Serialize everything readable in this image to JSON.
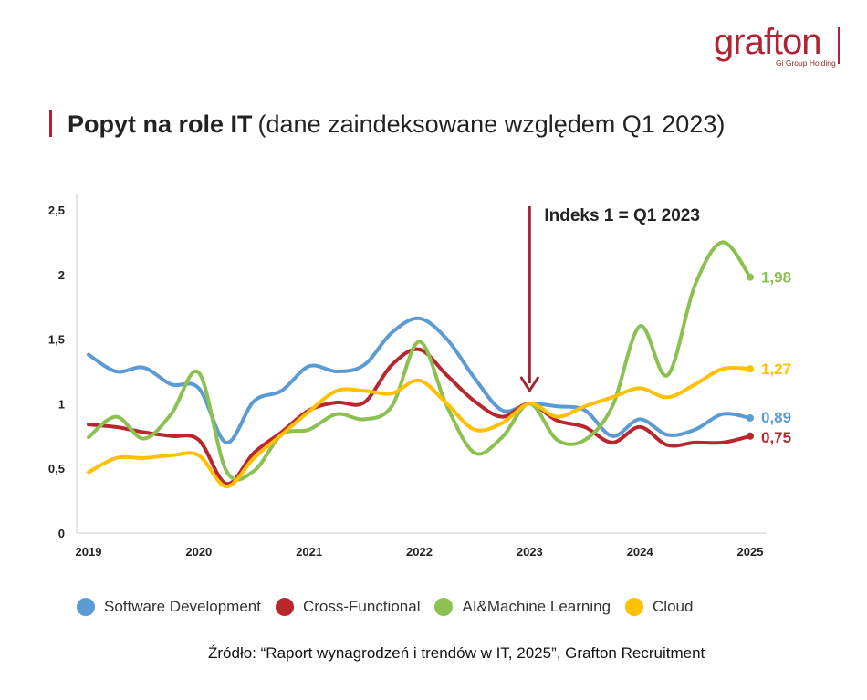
{
  "logo": {
    "word": "grafton",
    "sub": "Gi Group Holding"
  },
  "title": {
    "bold": "Popyt na role IT",
    "regular": "(dane zaindeksowane względem Q1 2023)"
  },
  "annotation": {
    "text": "Indeks 1 = Q1 2023",
    "x": 2023
  },
  "source": "Źródło: “Raport wynagrodzeń i trendów w IT, 2025”, Grafton Recruitment",
  "colors": {
    "brand": "#b22234",
    "axis": "#cccccc",
    "annotation_arrow": "#a02a33"
  },
  "chart_data": {
    "type": "line",
    "title": "Popyt na role IT (dane zaindeksowane względem Q1 2023)",
    "xlabel": "",
    "ylabel": "",
    "x_ticks": [
      2019,
      2020,
      2021,
      2022,
      2023,
      2024,
      2025
    ],
    "x_tick_labels": [
      "2019",
      "2020",
      "2021",
      "2022",
      "2023",
      "2024",
      "2025"
    ],
    "y_ticks": [
      0,
      0.5,
      1,
      1.5,
      2,
      2.5
    ],
    "y_tick_labels": [
      "0",
      "0,5",
      "1",
      "1,5",
      "2",
      "2,5"
    ],
    "xlim": [
      2019,
      2025
    ],
    "ylim": [
      0,
      2.5
    ],
    "grid": false,
    "legend_position": "bottom",
    "series": [
      {
        "name": "Software Development",
        "color": "#5b9bd5",
        "end_label": "0,89",
        "points": [
          [
            2019,
            1.38
          ],
          [
            2019.25,
            1.25
          ],
          [
            2019.5,
            1.28
          ],
          [
            2019.75,
            1.15
          ],
          [
            2020,
            1.12
          ],
          [
            2020.25,
            0.7
          ],
          [
            2020.5,
            1.02
          ],
          [
            2020.75,
            1.1
          ],
          [
            2021,
            1.29
          ],
          [
            2021.25,
            1.25
          ],
          [
            2021.5,
            1.3
          ],
          [
            2021.75,
            1.55
          ],
          [
            2022,
            1.66
          ],
          [
            2022.25,
            1.5
          ],
          [
            2022.5,
            1.2
          ],
          [
            2022.75,
            0.95
          ],
          [
            2023,
            1.0
          ],
          [
            2023.25,
            0.98
          ],
          [
            2023.5,
            0.95
          ],
          [
            2023.75,
            0.75
          ],
          [
            2024,
            0.88
          ],
          [
            2024.25,
            0.76
          ],
          [
            2024.5,
            0.8
          ],
          [
            2024.75,
            0.92
          ],
          [
            2025,
            0.89
          ]
        ]
      },
      {
        "name": "Cross-Functional",
        "color": "#b8262e",
        "end_label": "0,75",
        "points": [
          [
            2019,
            0.84
          ],
          [
            2019.25,
            0.82
          ],
          [
            2019.5,
            0.78
          ],
          [
            2019.75,
            0.75
          ],
          [
            2020,
            0.72
          ],
          [
            2020.25,
            0.38
          ],
          [
            2020.5,
            0.62
          ],
          [
            2020.75,
            0.78
          ],
          [
            2021,
            0.95
          ],
          [
            2021.25,
            1.01
          ],
          [
            2021.5,
            1.01
          ],
          [
            2021.75,
            1.3
          ],
          [
            2022,
            1.42
          ],
          [
            2022.25,
            1.22
          ],
          [
            2022.5,
            1.02
          ],
          [
            2022.75,
            0.9
          ],
          [
            2023,
            1.0
          ],
          [
            2023.25,
            0.87
          ],
          [
            2023.5,
            0.82
          ],
          [
            2023.75,
            0.7
          ],
          [
            2024,
            0.82
          ],
          [
            2024.25,
            0.68
          ],
          [
            2024.5,
            0.7
          ],
          [
            2024.75,
            0.7
          ],
          [
            2025,
            0.75
          ]
        ]
      },
      {
        "name": "AI&Machine Learning",
        "color": "#8cc152",
        "end_label": "1,98",
        "points": [
          [
            2019,
            0.74
          ],
          [
            2019.25,
            0.9
          ],
          [
            2019.5,
            0.73
          ],
          [
            2019.75,
            0.92
          ],
          [
            2020,
            1.24
          ],
          [
            2020.25,
            0.48
          ],
          [
            2020.5,
            0.48
          ],
          [
            2020.75,
            0.76
          ],
          [
            2021,
            0.8
          ],
          [
            2021.25,
            0.92
          ],
          [
            2021.5,
            0.88
          ],
          [
            2021.75,
            0.98
          ],
          [
            2022,
            1.48
          ],
          [
            2022.25,
            0.98
          ],
          [
            2022.5,
            0.62
          ],
          [
            2022.75,
            0.74
          ],
          [
            2023,
            1.0
          ],
          [
            2023.25,
            0.72
          ],
          [
            2023.5,
            0.72
          ],
          [
            2023.75,
            0.98
          ],
          [
            2024,
            1.6
          ],
          [
            2024.25,
            1.22
          ],
          [
            2024.5,
            1.92
          ],
          [
            2024.75,
            2.25
          ],
          [
            2025,
            1.98
          ]
        ]
      },
      {
        "name": "Cloud",
        "color": "#ffc000",
        "end_label": "1,27",
        "points": [
          [
            2019,
            0.47
          ],
          [
            2019.25,
            0.58
          ],
          [
            2019.5,
            0.58
          ],
          [
            2019.75,
            0.6
          ],
          [
            2020,
            0.6
          ],
          [
            2020.25,
            0.36
          ],
          [
            2020.5,
            0.58
          ],
          [
            2020.75,
            0.76
          ],
          [
            2021,
            0.94
          ],
          [
            2021.25,
            1.1
          ],
          [
            2021.5,
            1.1
          ],
          [
            2021.75,
            1.08
          ],
          [
            2022,
            1.18
          ],
          [
            2022.25,
            1.0
          ],
          [
            2022.5,
            0.8
          ],
          [
            2022.75,
            0.85
          ],
          [
            2023,
            1.0
          ],
          [
            2023.25,
            0.9
          ],
          [
            2023.5,
            0.98
          ],
          [
            2023.75,
            1.05
          ],
          [
            2024,
            1.12
          ],
          [
            2024.25,
            1.05
          ],
          [
            2024.5,
            1.15
          ],
          [
            2024.75,
            1.27
          ],
          [
            2025,
            1.27
          ]
        ]
      }
    ]
  }
}
